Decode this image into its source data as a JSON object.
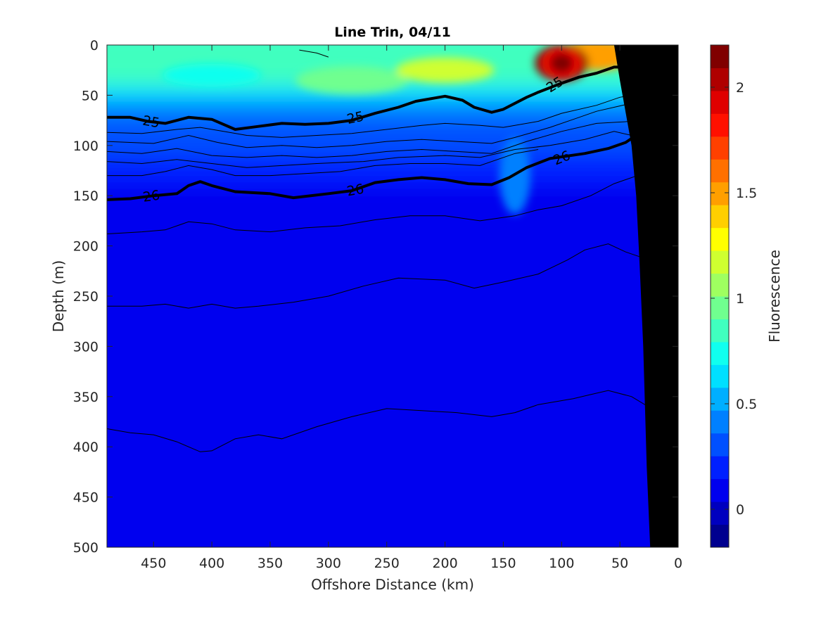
{
  "chart_data": {
    "type": "heatmap",
    "title": "Line Trin, 04/11",
    "xlabel": "Offshore Distance (km)",
    "ylabel": "Depth (m)",
    "colorbar_label": "Fluorescence",
    "xlim": [
      490,
      0
    ],
    "ylim": [
      0,
      500
    ],
    "x_reversed": true,
    "y_reversed": true,
    "clim": [
      -0.18,
      2.2
    ],
    "xticks": [
      450,
      400,
      350,
      300,
      250,
      200,
      150,
      100,
      50,
      0
    ],
    "yticks": [
      0,
      50,
      100,
      150,
      200,
      250,
      300,
      350,
      400,
      450,
      500
    ],
    "colorbar_ticks": [
      0,
      0.5,
      1,
      1.5,
      2
    ],
    "colormap": [
      "#00008f",
      "#0000bf",
      "#0000ef",
      "#0020ff",
      "#0050ff",
      "#0080ff",
      "#00afff",
      "#00dfff",
      "#10ffef",
      "#40ffbf",
      "#70ff8f",
      "#9fff60",
      "#cfff30",
      "#ffff00",
      "#ffcf00",
      "#ff9f00",
      "#ff7000",
      "#ff4000",
      "#ff1000",
      "#df0000",
      "#af0000",
      "#800000"
    ],
    "grid": false,
    "fluorescence_features": [
      {
        "x": 100,
        "y": 18,
        "value": 2.1
      },
      {
        "x": 70,
        "y": 10,
        "value": 1.5
      },
      {
        "x": 20,
        "y": 8,
        "value": 1.45
      },
      {
        "x": 200,
        "y": 25,
        "value": 1.15
      },
      {
        "x": 280,
        "y": 35,
        "value": 0.95
      },
      {
        "x": 400,
        "y": 30,
        "value": 0.7
      },
      {
        "x": 140,
        "y": 130,
        "value": 0.45
      }
    ],
    "contour_labels": [
      {
        "text": "25",
        "x": 452,
        "y": 76,
        "angle": 10
      },
      {
        "text": "25",
        "x": 277,
        "y": 72,
        "angle": -12
      },
      {
        "text": "25",
        "x": 106,
        "y": 39,
        "angle": -32
      },
      {
        "text": "26",
        "x": 452,
        "y": 150,
        "angle": -8
      },
      {
        "text": "26",
        "x": 277,
        "y": 144,
        "angle": -10
      },
      {
        "text": "26",
        "x": 100,
        "y": 112,
        "angle": -22
      }
    ],
    "contours_major": [
      {
        "level": 25,
        "points": [
          [
            490,
            72
          ],
          [
            470,
            72
          ],
          [
            455,
            76
          ],
          [
            440,
            78
          ],
          [
            420,
            72
          ],
          [
            400,
            74
          ],
          [
            380,
            84
          ],
          [
            360,
            81
          ],
          [
            340,
            78
          ],
          [
            320,
            79
          ],
          [
            300,
            78
          ],
          [
            280,
            75
          ],
          [
            260,
            68
          ],
          [
            240,
            62
          ],
          [
            225,
            56
          ],
          [
            200,
            51
          ],
          [
            185,
            55
          ],
          [
            175,
            62
          ],
          [
            160,
            67
          ],
          [
            150,
            64
          ],
          [
            130,
            52
          ],
          [
            120,
            47
          ],
          [
            100,
            38
          ],
          [
            85,
            32
          ],
          [
            70,
            28
          ],
          [
            55,
            22
          ],
          [
            40,
            22
          ],
          [
            20,
            24
          ],
          [
            0,
            26
          ]
        ]
      },
      {
        "level": 26,
        "points": [
          [
            490,
            154
          ],
          [
            470,
            153
          ],
          [
            450,
            150
          ],
          [
            430,
            148
          ],
          [
            420,
            140
          ],
          [
            410,
            136
          ],
          [
            400,
            140
          ],
          [
            380,
            146
          ],
          [
            350,
            148
          ],
          [
            330,
            152
          ],
          [
            300,
            148
          ],
          [
            280,
            145
          ],
          [
            260,
            137
          ],
          [
            240,
            134
          ],
          [
            220,
            132
          ],
          [
            200,
            134
          ],
          [
            180,
            138
          ],
          [
            160,
            139
          ],
          [
            145,
            132
          ],
          [
            130,
            122
          ],
          [
            110,
            113
          ],
          [
            80,
            108
          ],
          [
            60,
            103
          ],
          [
            45,
            97
          ],
          [
            35,
            89
          ],
          [
            20,
            92
          ],
          [
            0,
            97
          ]
        ]
      }
    ],
    "contours_minor": [
      [
        [
          325,
          5
        ],
        [
          310,
          8
        ],
        [
          300,
          12
        ]
      ],
      [
        [
          490,
          87
        ],
        [
          460,
          88
        ],
        [
          430,
          84
        ],
        [
          410,
          82
        ],
        [
          390,
          86
        ],
        [
          370,
          90
        ],
        [
          340,
          92
        ],
        [
          310,
          90
        ],
        [
          280,
          88
        ],
        [
          250,
          84
        ],
        [
          220,
          80
        ],
        [
          200,
          78
        ],
        [
          170,
          80
        ],
        [
          150,
          82
        ],
        [
          120,
          76
        ],
        [
          100,
          68
        ],
        [
          70,
          60
        ],
        [
          50,
          52
        ],
        [
          30,
          48
        ],
        [
          0,
          50
        ]
      ],
      [
        [
          490,
          96
        ],
        [
          450,
          98
        ],
        [
          420,
          90
        ],
        [
          395,
          97
        ],
        [
          370,
          102
        ],
        [
          340,
          100
        ],
        [
          310,
          102
        ],
        [
          280,
          100
        ],
        [
          250,
          96
        ],
        [
          220,
          94
        ],
        [
          190,
          96
        ],
        [
          160,
          98
        ],
        [
          140,
          92
        ],
        [
          110,
          82
        ],
        [
          90,
          74
        ],
        [
          70,
          66
        ],
        [
          40,
          58
        ],
        [
          20,
          62
        ],
        [
          0,
          65
        ]
      ],
      [
        [
          490,
          106
        ],
        [
          460,
          108
        ],
        [
          430,
          103
        ],
        [
          400,
          110
        ],
        [
          370,
          112
        ],
        [
          340,
          110
        ],
        [
          310,
          112
        ],
        [
          280,
          110
        ],
        [
          250,
          106
        ],
        [
          220,
          104
        ],
        [
          190,
          106
        ],
        [
          160,
          108
        ],
        [
          130,
          96
        ],
        [
          100,
          86
        ],
        [
          70,
          78
        ],
        [
          40,
          76
        ],
        [
          20,
          82
        ],
        [
          0,
          84
        ]
      ],
      [
        [
          490,
          116
        ],
        [
          460,
          118
        ],
        [
          430,
          114
        ],
        [
          400,
          118
        ],
        [
          370,
          122
        ],
        [
          340,
          120
        ],
        [
          310,
          118
        ],
        [
          270,
          116
        ],
        [
          240,
          112
        ],
        [
          200,
          110
        ],
        [
          170,
          112
        ],
        [
          140,
          104
        ],
        [
          110,
          100
        ],
        [
          80,
          94
        ],
        [
          55,
          86
        ],
        [
          40,
          90
        ],
        [
          20,
          96
        ],
        [
          0,
          98
        ]
      ],
      [
        [
          490,
          130
        ],
        [
          460,
          130
        ],
        [
          440,
          126
        ],
        [
          420,
          120
        ],
        [
          400,
          124
        ],
        [
          380,
          130
        ],
        [
          350,
          130
        ],
        [
          320,
          128
        ],
        [
          290,
          126
        ],
        [
          260,
          120
        ],
        [
          230,
          118
        ],
        [
          200,
          118
        ],
        [
          170,
          120
        ],
        [
          140,
          108
        ],
        [
          120,
          104
        ]
      ],
      [
        [
          490,
          188
        ],
        [
          460,
          186
        ],
        [
          440,
          184
        ],
        [
          420,
          176
        ],
        [
          400,
          178
        ],
        [
          380,
          184
        ],
        [
          350,
          186
        ],
        [
          320,
          182
        ],
        [
          290,
          180
        ],
        [
          260,
          174
        ],
        [
          230,
          170
        ],
        [
          200,
          170
        ],
        [
          170,
          175
        ],
        [
          140,
          170
        ],
        [
          120,
          164
        ],
        [
          100,
          160
        ],
        [
          75,
          150
        ],
        [
          55,
          138
        ],
        [
          30,
          128
        ],
        [
          10,
          130
        ],
        [
          0,
          134
        ]
      ],
      [
        [
          490,
          260
        ],
        [
          460,
          260
        ],
        [
          440,
          258
        ],
        [
          420,
          262
        ],
        [
          400,
          258
        ],
        [
          380,
          262
        ],
        [
          360,
          260
        ],
        [
          330,
          256
        ],
        [
          300,
          250
        ],
        [
          270,
          240
        ],
        [
          240,
          232
        ],
        [
          200,
          234
        ],
        [
          175,
          242
        ],
        [
          150,
          236
        ],
        [
          120,
          228
        ],
        [
          95,
          214
        ],
        [
          80,
          204
        ],
        [
          60,
          198
        ],
        [
          45,
          206
        ],
        [
          30,
          212
        ]
      ],
      [
        [
          490,
          382
        ],
        [
          470,
          386
        ],
        [
          450,
          388
        ],
        [
          430,
          395
        ],
        [
          410,
          405
        ],
        [
          400,
          404
        ],
        [
          380,
          392
        ],
        [
          360,
          388
        ],
        [
          340,
          392
        ],
        [
          310,
          380
        ],
        [
          280,
          370
        ],
        [
          250,
          362
        ],
        [
          220,
          364
        ],
        [
          190,
          366
        ],
        [
          160,
          370
        ],
        [
          140,
          366
        ],
        [
          120,
          358
        ],
        [
          90,
          352
        ],
        [
          75,
          348
        ],
        [
          60,
          344
        ],
        [
          40,
          350
        ],
        [
          20,
          364
        ]
      ]
    ],
    "coast_boundary": [
      [
        0,
        0
      ],
      [
        0,
        500
      ],
      [
        24,
        500
      ],
      [
        27,
        420
      ],
      [
        30,
        300
      ],
      [
        33,
        220
      ],
      [
        36,
        150
      ],
      [
        40,
        100
      ],
      [
        50,
        35
      ],
      [
        55,
        0
      ]
    ]
  }
}
